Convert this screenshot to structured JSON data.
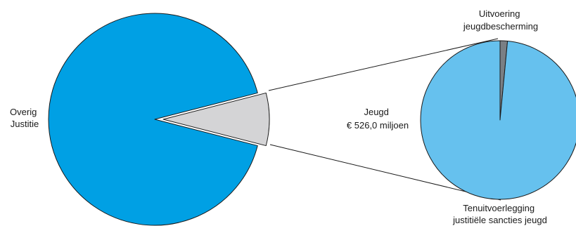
{
  "chart_data": [
    {
      "type": "pie",
      "title": "",
      "slices": [
        {
          "label": [
            "Overig",
            "Justitie"
          ],
          "share": 0.92,
          "color": "#00a0e4"
        },
        {
          "label": [
            "Jeugd",
            "€ 526,0 miljoen"
          ],
          "share": 0.08,
          "color": "#d4d4d6",
          "exploded": true
        }
      ]
    },
    {
      "type": "pie",
      "title": "",
      "breakdown_of": "Jeugd",
      "slices": [
        {
          "label": [
            "Tenuitvoerlegging",
            "justitiële sancties jeugd"
          ],
          "share": 0.985,
          "color": "#66c1ee"
        },
        {
          "label": [
            "Uitvoering",
            "jeugdbescherming"
          ],
          "share": 0.015,
          "color": "#7a7f84"
        }
      ]
    }
  ]
}
